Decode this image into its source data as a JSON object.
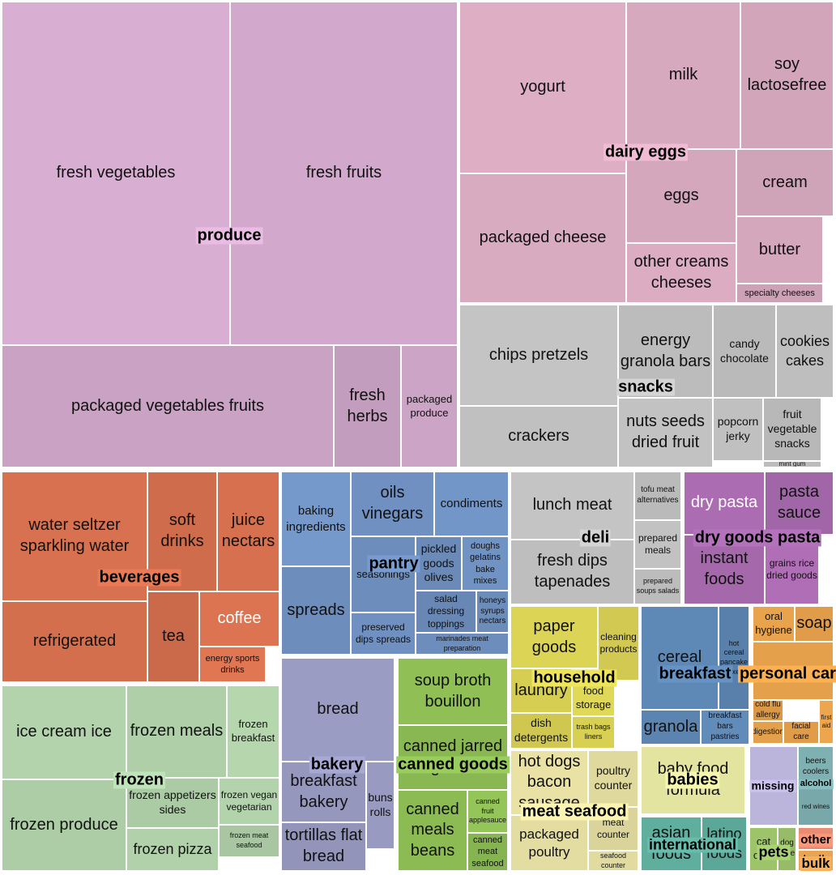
{
  "chart_data": {
    "type": "treemap",
    "title": "",
    "groups": [
      {
        "name": "produce",
        "color": "#d9aed3",
        "children": [
          {
            "name": "fresh vegetables",
            "value": 150609
          },
          {
            "name": "fresh fruits",
            "value": 150473
          },
          {
            "name": "packaged vegetables fruits",
            "value": 78493
          },
          {
            "name": "fresh herbs",
            "value": 9935
          },
          {
            "name": "packaged produce",
            "value": 8100
          }
        ]
      },
      {
        "name": "dairy eggs",
        "color": "#ddaec4",
        "children": [
          {
            "name": "yogurt",
            "value": 48000
          },
          {
            "name": "milk",
            "value": 32000
          },
          {
            "name": "soy lactosefree",
            "value": 22000
          },
          {
            "name": "packaged cheese",
            "value": 41000
          },
          {
            "name": "eggs",
            "value": 19000
          },
          {
            "name": "cream",
            "value": 11000
          },
          {
            "name": "other creams cheeses",
            "value": 13000
          },
          {
            "name": "butter",
            "value": 8000
          },
          {
            "name": "specialty cheeses",
            "value": 3000
          }
        ]
      },
      {
        "name": "snacks",
        "color": "#c4c4c4",
        "children": [
          {
            "name": "chips pretzels",
            "value": 31000
          },
          {
            "name": "crackers",
            "value": 20000
          },
          {
            "name": "energy granola bars",
            "value": 19000
          },
          {
            "name": "nuts seeds dried fruit",
            "value": 17000
          },
          {
            "name": "candy chocolate",
            "value": 12000
          },
          {
            "name": "cookies cakes",
            "value": 11000
          },
          {
            "name": "popcorn jerky",
            "value": 8000
          },
          {
            "name": "fruit vegetable snacks",
            "value": 7000
          },
          {
            "name": "mint gum",
            "value": 1500
          }
        ]
      },
      {
        "name": "beverages",
        "color": "#d8714f",
        "children": [
          {
            "name": "water seltzer sparkling water",
            "value": 36000
          },
          {
            "name": "soft drinks",
            "value": 17000
          },
          {
            "name": "juice nectars",
            "value": 16000
          },
          {
            "name": "refrigerated",
            "value": 22000
          },
          {
            "name": "tea",
            "value": 8000
          },
          {
            "name": "coffee",
            "value": 7000
          },
          {
            "name": "energy sports drinks",
            "value": 4000
          }
        ]
      },
      {
        "name": "pantry",
        "color": "#6f90c0",
        "children": [
          {
            "name": "baking ingredients",
            "value": 11000
          },
          {
            "name": "spreads",
            "value": 12000
          },
          {
            "name": "oils vinegars",
            "value": 10000
          },
          {
            "name": "condiments",
            "value": 9000
          },
          {
            "name": "pickled goods olives",
            "value": 7000
          },
          {
            "name": "seasonings",
            "value": 5000
          },
          {
            "name": "doughs gelatins bake mixes",
            "value": 3800
          },
          {
            "name": "salad dressing toppings",
            "value": 3500
          },
          {
            "name": "honeys syrups nectars",
            "value": 2500
          },
          {
            "name": "preserved dips spreads",
            "value": 4000
          },
          {
            "name": "marinades meat preparation",
            "value": 2500
          }
        ]
      },
      {
        "name": "deli",
        "color": "#c4c4c4",
        "children": [
          {
            "name": "lunch meat",
            "value": 12000
          },
          {
            "name": "fresh dips tapenades",
            "value": 13000
          },
          {
            "name": "tofu meat alternatives",
            "value": 3000
          },
          {
            "name": "prepared meals",
            "value": 3500
          },
          {
            "name": "prepared soups salads",
            "value": 2500
          }
        ]
      },
      {
        "name": "dry goods pasta",
        "color": "#a86aae",
        "children": [
          {
            "name": "dry pasta",
            "value": 7000
          },
          {
            "name": "pasta sauce",
            "value": 5000
          },
          {
            "name": "instant foods",
            "value": 8000
          },
          {
            "name": "grains rice dried goods",
            "value": 5000
          }
        ]
      },
      {
        "name": "frozen",
        "color": "#b2d3ab",
        "children": [
          {
            "name": "ice cream ice",
            "value": 22000
          },
          {
            "name": "frozen produce",
            "value": 21000
          },
          {
            "name": "frozen meals",
            "value": 16000
          },
          {
            "name": "frozen breakfast",
            "value": 9000
          },
          {
            "name": "frozen appetizers sides",
            "value": 9000
          },
          {
            "name": "frozen vegan vegetarian",
            "value": 4000
          },
          {
            "name": "frozen meat seafood",
            "value": 3500
          },
          {
            "name": "frozen pizza",
            "value": 8000
          }
        ]
      },
      {
        "name": "bakery",
        "color": "#9b9cc3",
        "children": [
          {
            "name": "bread",
            "value": 17000
          },
          {
            "name": "breakfast bakery",
            "value": 9000
          },
          {
            "name": "tortillas flat bread",
            "value": 7000
          },
          {
            "name": "buns rolls",
            "value": 3500
          }
        ]
      },
      {
        "name": "canned goods",
        "color": "#8fbf55",
        "children": [
          {
            "name": "soup broth bouillon",
            "value": 11000
          },
          {
            "name": "canned jarred vegetables",
            "value": 10000
          },
          {
            "name": "canned meals beans",
            "value": 10000
          },
          {
            "name": "canned fruit applesauce",
            "value": 2800
          },
          {
            "name": "canned meat seafood",
            "value": 2500
          }
        ]
      },
      {
        "name": "household",
        "color": "#dcd455",
        "children": [
          {
            "name": "paper goods",
            "value": 9000
          },
          {
            "name": "cleaning products",
            "value": 4000
          },
          {
            "name": "laundry",
            "value": 5000
          },
          {
            "name": "food storage",
            "value": 2800
          },
          {
            "name": "dish detergents",
            "value": 3500
          },
          {
            "name": "trash bags liners",
            "value": 1800
          }
        ]
      },
      {
        "name": "meat seafood",
        "color": "#e9e2a4",
        "children": [
          {
            "name": "hot dogs bacon sausage",
            "value": 9000
          },
          {
            "name": "poultry counter",
            "value": 4000
          },
          {
            "name": "packaged poultry",
            "value": 4500
          },
          {
            "name": "meat counter",
            "value": 2800
          },
          {
            "name": "seafood counter",
            "value": 1800
          }
        ]
      },
      {
        "name": "breakfast",
        "color": "#5e88b5",
        "children": [
          {
            "name": "cereal",
            "value": 9000
          },
          {
            "name": "hot cereal pancake mixes",
            "value": 2500
          },
          {
            "name": "granola",
            "value": 3000
          },
          {
            "name": "breakfast bars pastries",
            "value": 2000
          }
        ]
      },
      {
        "name": "personal care",
        "color": "#e9a34c",
        "children": [
          {
            "name": "oral hygiene",
            "value": 1800
          },
          {
            "name": "soap",
            "value": 1800
          },
          {
            "name": "cold flu allergy",
            "value": 1100
          },
          {
            "name": "digestion",
            "value": 900
          },
          {
            "name": "facial care",
            "value": 900
          },
          {
            "name": "first aid",
            "value": 800
          }
        ]
      },
      {
        "name": "babies",
        "color": "#e4e4a1",
        "children": [
          {
            "name": "baby food formula",
            "value": 7000
          }
        ]
      },
      {
        "name": "international",
        "color": "#5fae9e",
        "children": [
          {
            "name": "asian foods",
            "value": 3000
          },
          {
            "name": "latino foods",
            "value": 2000
          }
        ]
      },
      {
        "name": "missing",
        "color": "#bcb5db",
        "children": [
          {
            "name": "missing",
            "value": 3500
          }
        ]
      },
      {
        "name": "alcohol",
        "color": "#7fb1b3",
        "children": [
          {
            "name": "beers coolers",
            "value": 1000
          },
          {
            "name": "red wines",
            "value": 600
          }
        ]
      },
      {
        "name": "pets",
        "color": "#9dc46b",
        "children": [
          {
            "name": "cat care",
            "value": 900
          },
          {
            "name": "dog care",
            "value": 600
          }
        ]
      },
      {
        "name": "other",
        "color": "#e88d72",
        "children": [
          {
            "name": "other",
            "value": 700
          }
        ]
      },
      {
        "name": "bulk",
        "color": "#e7a455",
        "children": [
          {
            "name": "bulk",
            "value": 600
          }
        ]
      }
    ]
  }
}
